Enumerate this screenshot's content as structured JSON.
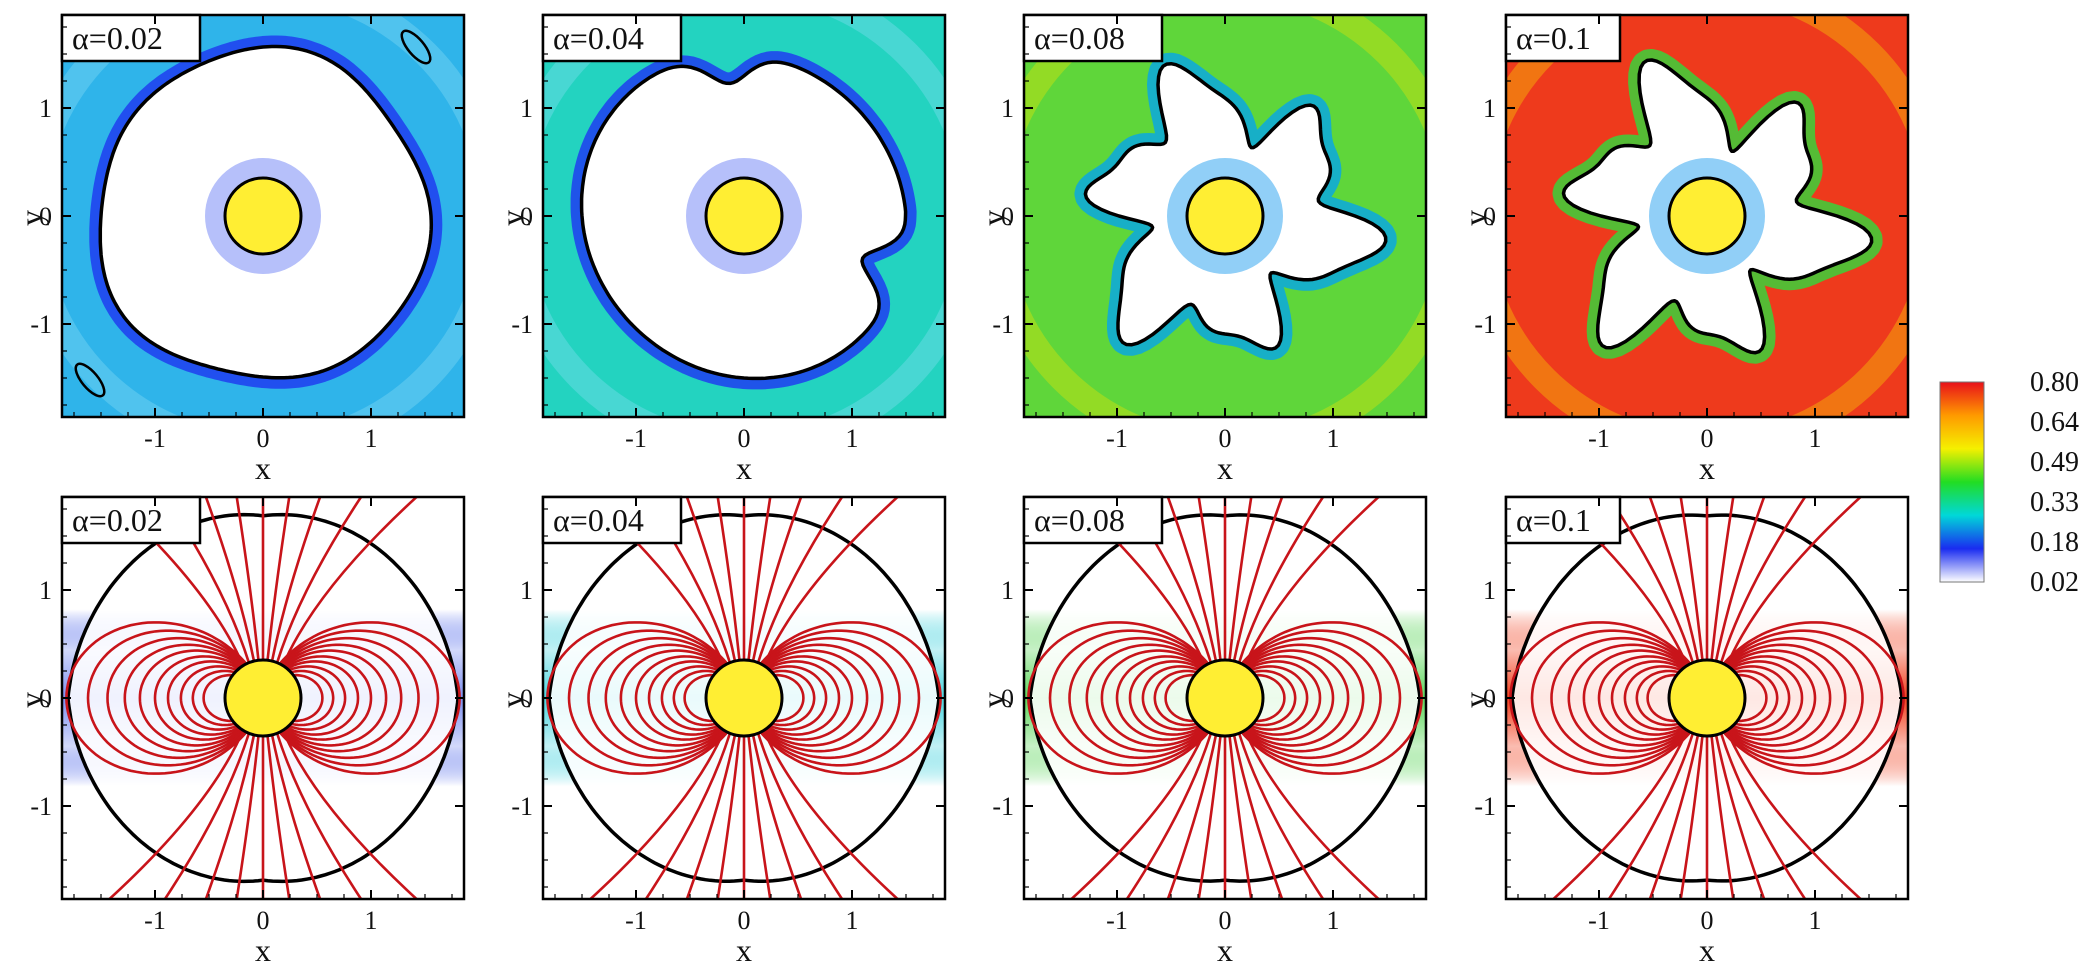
{
  "axis": {
    "xlabel": "x",
    "ylabel": "y",
    "xticks": [
      "-1",
      "0",
      "1"
    ],
    "yticks": [
      "1",
      "0",
      "-1"
    ]
  },
  "rows": [
    {
      "id": "top",
      "panels": [
        {
          "label": "α=0.02",
          "alpha": 0.02,
          "background": "#2fb4ea",
          "cavity": "round",
          "ring": "#1f3df0",
          "lobes": 0
        },
        {
          "label": "α=0.04",
          "alpha": 0.04,
          "background": "#23d3c0",
          "cavity": "round-notched",
          "ring": "#1f3df0",
          "lobes": 1
        },
        {
          "label": "α=0.08",
          "alpha": 0.08,
          "background": "#5fd63a",
          "cavity": "pinwheel",
          "ring": "#0aa8e0",
          "lobes": 6
        },
        {
          "label": "α=0.1",
          "alpha": 0.1,
          "background": "#ee3a1c",
          "cavity": "pinwheel",
          "ring": "#3ad23a",
          "lobes": 6
        }
      ]
    },
    {
      "id": "bottom",
      "panels": [
        {
          "label": "α=0.02",
          "alpha": 0.02,
          "band": "#2a48e6",
          "band_strength": 0.6
        },
        {
          "label": "α=0.04",
          "alpha": 0.04,
          "band": "#14c8d6",
          "band_strength": 0.75
        },
        {
          "label": "α=0.08",
          "alpha": 0.08,
          "band": "#42d040",
          "band_strength": 0.85
        },
        {
          "label": "α=0.1",
          "alpha": 0.1,
          "band": "#f2401e",
          "band_strength": 1.0
        }
      ]
    }
  ],
  "colorbar": {
    "ticks": [
      "0.80",
      "0.64",
      "0.49",
      "0.33",
      "0.18",
      "0.02"
    ],
    "colors": [
      "#e8101a",
      "#ff9a00",
      "#f5f000",
      "#22dd22",
      "#00d8d8",
      "#1a2cf0",
      "#ffffff"
    ]
  },
  "colors": {
    "star": "#ffee33",
    "field_lines": "#c8141a",
    "boundary": "#000000"
  }
}
